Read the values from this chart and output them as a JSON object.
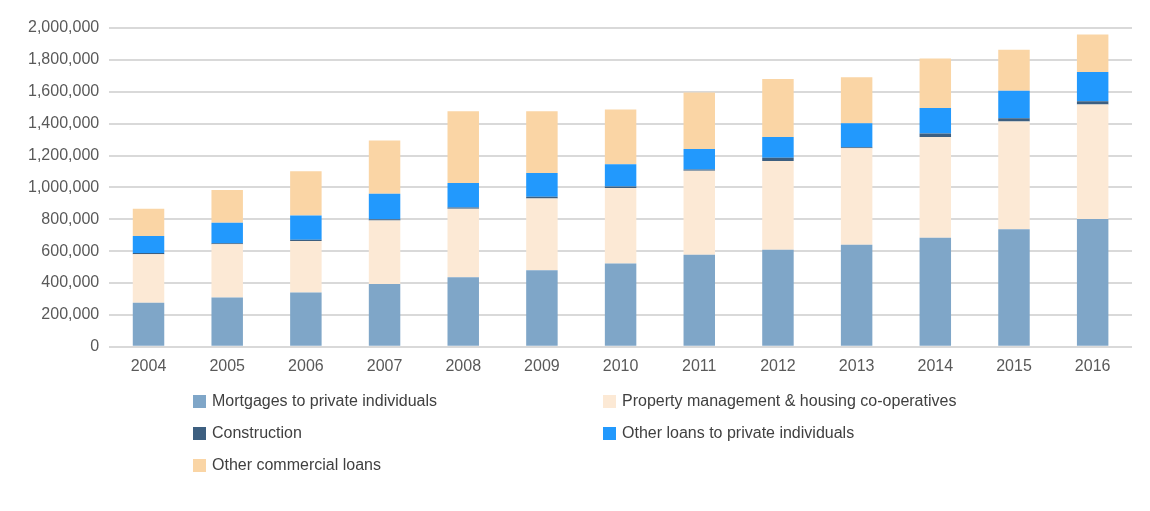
{
  "chart_data": {
    "type": "bar",
    "stacked": true,
    "categories": [
      "2004",
      "2005",
      "2006",
      "2007",
      "2008",
      "2009",
      "2010",
      "2011",
      "2012",
      "2013",
      "2014",
      "2015",
      "2016"
    ],
    "series": [
      {
        "name": "Mortgages to private individuals",
        "color": "#7fa6c8",
        "values": [
          276000,
          309000,
          341000,
          394000,
          437000,
          480000,
          523000,
          577000,
          609000,
          641000,
          684000,
          738000,
          802000
        ]
      },
      {
        "name": "Property management & housing co-operatives",
        "color": "#fce9d5",
        "values": [
          305000,
          334000,
          323000,
          399000,
          429000,
          451000,
          474000,
          527000,
          557000,
          605000,
          632000,
          675000,
          718000
        ]
      },
      {
        "name": "Construction",
        "color": "#3d5f80",
        "values": [
          7000,
          7000,
          7000,
          7000,
          8000,
          10000,
          8000,
          9000,
          20000,
          6000,
          22000,
          21000,
          21000
        ]
      },
      {
        "name": "Other loans to private individuals",
        "color": "#2299fd",
        "values": [
          107000,
          128000,
          152000,
          160000,
          153000,
          150000,
          140000,
          128000,
          130000,
          150000,
          160000,
          172000,
          183000
        ]
      },
      {
        "name": "Other commercial loans",
        "color": "#fad5a5",
        "values": [
          171000,
          206000,
          279000,
          335000,
          450000,
          386000,
          343000,
          354000,
          364000,
          289000,
          311000,
          257000,
          236000
        ]
      }
    ],
    "ylim": [
      0,
      2000000
    ],
    "yticks": [
      0,
      {
        "value": 200000,
        "label": "200,000"
      },
      {
        "value": 400000,
        "label": "400,000"
      },
      {
        "value": 600000,
        "label": "600,000"
      },
      {
        "value": 800000,
        "label": "800,000"
      },
      {
        "value": 1000000,
        "label": "1,000,000"
      },
      {
        "value": 1200000,
        "label": "1,200,000"
      },
      {
        "value": 1400000,
        "label": "1,400,000"
      },
      {
        "value": 1600000,
        "label": "1,600,000"
      },
      {
        "value": 1800000,
        "label": "1,800,000"
      },
      {
        "value": 2000000,
        "label": "2,000,000"
      }
    ],
    "grid": "y",
    "legend": "bottom"
  }
}
